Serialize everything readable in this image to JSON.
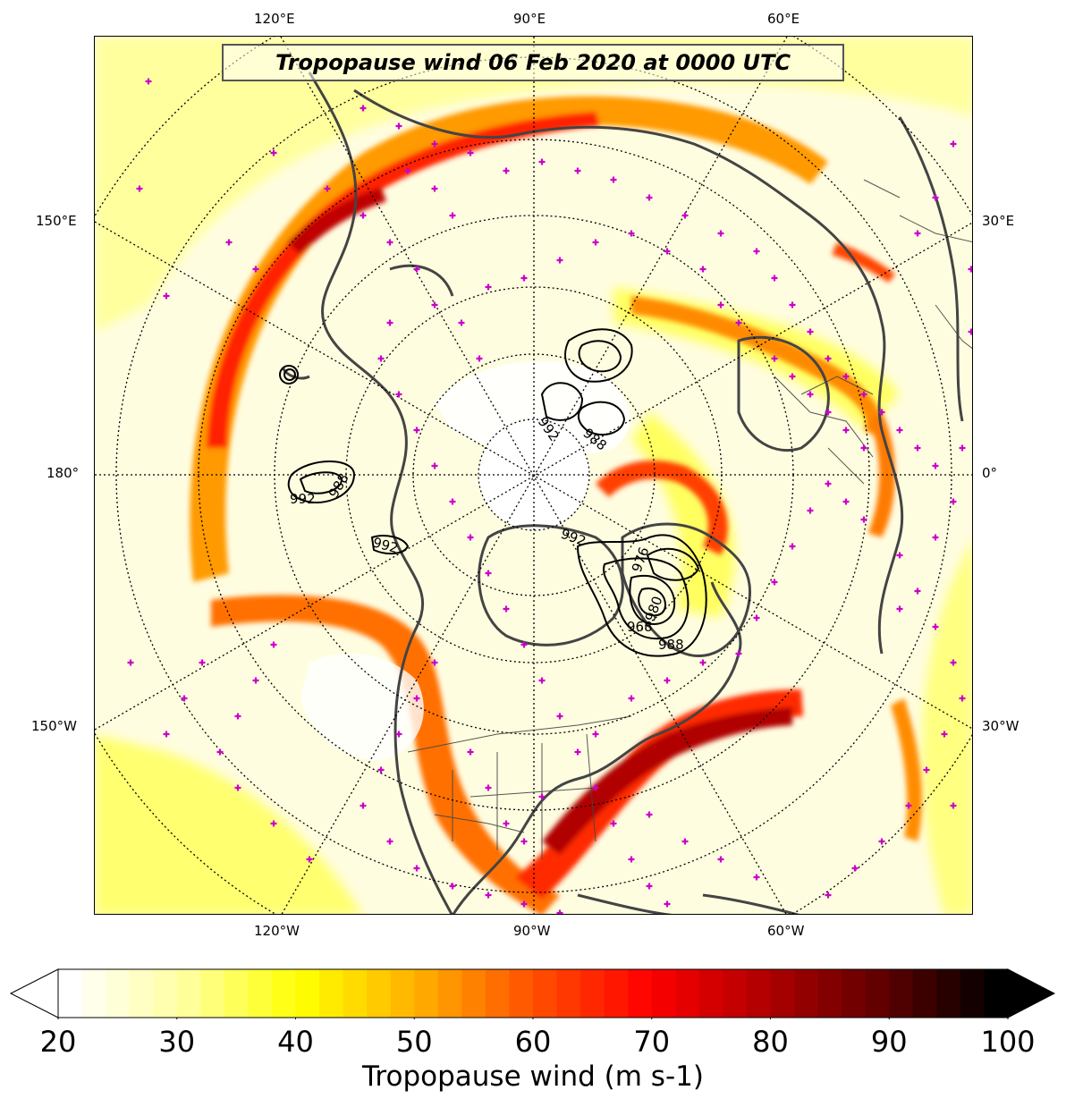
{
  "title": "Tropopause wind 06 Feb 2020 at 0000 UTC",
  "map": {
    "projection": "north polar stereographic",
    "longitude_labels_top": [
      "120°E",
      "90°E",
      "60°E"
    ],
    "longitude_labels_bottom": [
      "120°W",
      "90°W",
      "60°W"
    ],
    "longitude_labels_left": [
      "150°E",
      "180°",
      "150°W"
    ],
    "longitude_labels_right": [
      "30°E",
      "0°",
      "30°W"
    ],
    "contour_labels": [
      "992",
      "988",
      "992",
      "988",
      "992",
      "992",
      "980",
      "988",
      "968",
      "976"
    ],
    "station_marker_color": "#cc00cc",
    "contour_color": "#000000",
    "coastline_color": "#444444",
    "gridline_style": "dotted"
  },
  "colorbar": {
    "label": "Tropopause wind (m s-1)",
    "min": 20,
    "max": 100,
    "step": 2,
    "tick_labels": [
      "20",
      "30",
      "40",
      "50",
      "60",
      "70",
      "80",
      "90",
      "100"
    ],
    "extend": "both",
    "colormap": "hot_r",
    "colormap_stops": [
      "#ffffff",
      "#ffff9e",
      "#ffff00",
      "#ffb000",
      "#ff5000",
      "#ff0000",
      "#b00000",
      "#600000",
      "#000000"
    ]
  }
}
